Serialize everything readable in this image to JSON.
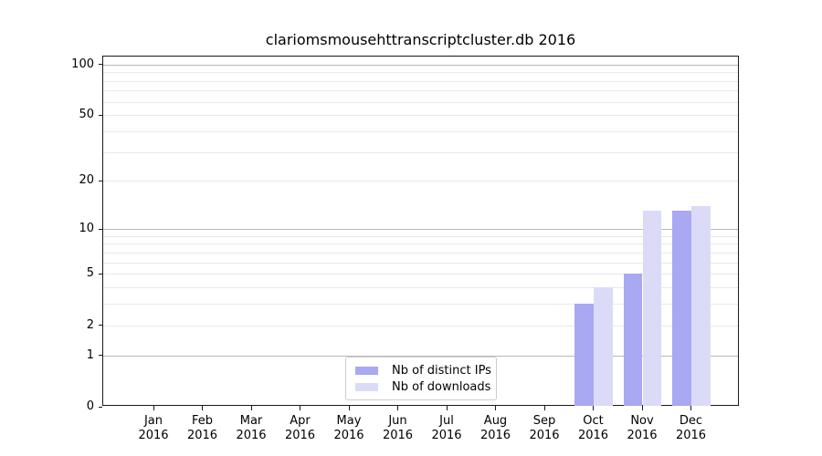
{
  "chart_data": {
    "type": "bar",
    "title": "clariomsmousehttranscriptcluster.db 2016",
    "categories": [
      "Jan",
      "Feb",
      "Mar",
      "Apr",
      "May",
      "Jun",
      "Jul",
      "Aug",
      "Sep",
      "Oct",
      "Nov",
      "Dec"
    ],
    "year": "2016",
    "series": [
      {
        "name": "Nb of distinct IPs",
        "color": "#a8a8f3",
        "values": [
          0,
          0,
          0,
          0,
          0,
          0,
          0,
          0,
          0,
          3,
          5,
          13
        ]
      },
      {
        "name": "Nb of downloads",
        "color": "#dbdbf8",
        "values": [
          0,
          0,
          0,
          0,
          0,
          0,
          0,
          0,
          0,
          4,
          13,
          14
        ]
      }
    ],
    "yscale": "log1p",
    "ylim": [
      0,
      111.5
    ],
    "yticks": [
      0,
      1,
      2,
      5,
      10,
      20,
      50,
      100
    ],
    "major_gridlines": [
      1,
      10,
      100
    ],
    "minor_gridlines": [
      2,
      3,
      4,
      5,
      6,
      7,
      8,
      9,
      20,
      30,
      40,
      50,
      60,
      70,
      80,
      90
    ],
    "grid": true,
    "legend_position": "bottom-center"
  }
}
